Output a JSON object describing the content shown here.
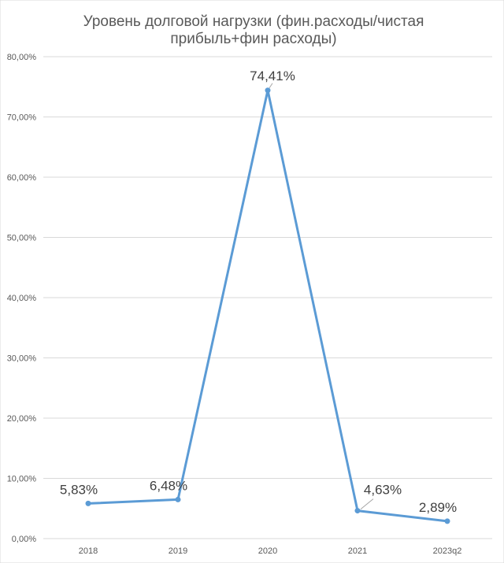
{
  "chart_data": {
    "type": "line",
    "title_lines": [
      "Уровень долговой нагрузки (фин.расходы/чистая",
      "прибыль+фин расходы)"
    ],
    "categories": [
      "2018",
      "2019",
      "2020",
      "2021",
      "2023q2"
    ],
    "series": [
      {
        "values": [
          5.83,
          6.48,
          74.41,
          4.63,
          2.89
        ],
        "data_labels": [
          "5,83%",
          "6,48%",
          "74,41%",
          "4,63%",
          "2,89%"
        ],
        "color": "#5B9BD5"
      }
    ],
    "ylim": [
      0,
      80
    ],
    "y_ticks": [
      {
        "value": 0,
        "label": "0,00%"
      },
      {
        "value": 10,
        "label": "10,00%"
      },
      {
        "value": 20,
        "label": "20,00%"
      },
      {
        "value": 30,
        "label": "30,00%"
      },
      {
        "value": 40,
        "label": "40,00%"
      },
      {
        "value": 50,
        "label": "50,00%"
      },
      {
        "value": 60,
        "label": "60,00%"
      },
      {
        "value": 70,
        "label": "70,00%"
      },
      {
        "value": 80,
        "label": "80,00%"
      }
    ],
    "grid": true,
    "legend": "none",
    "gridline_color": "#D9D9D9"
  }
}
